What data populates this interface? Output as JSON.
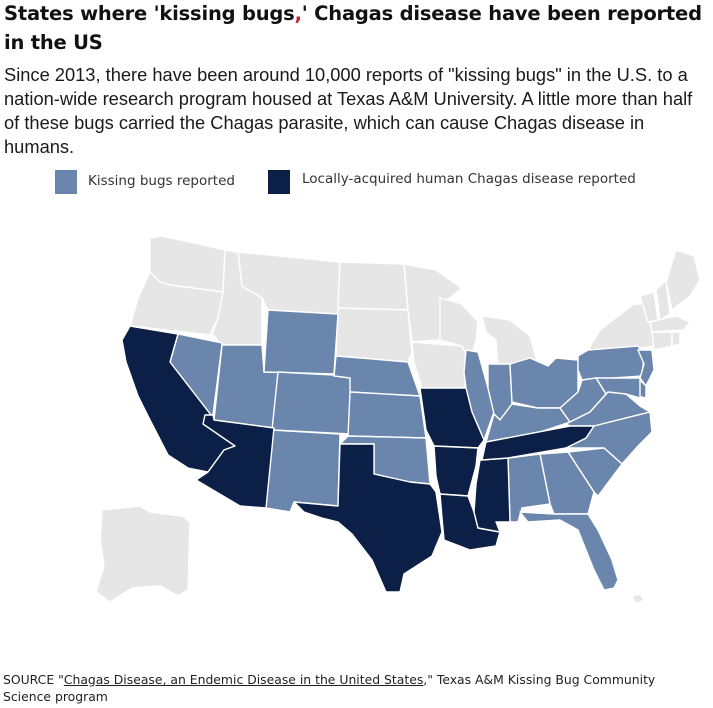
{
  "title": {
    "part1": "States where 'kissing bugs",
    "comma": ",",
    "part2": "' Chagas disease have been reported in the US"
  },
  "description": "Since 2013, there have been around 10,000 reports of \"kissing bugs\" in the U.S. to a nation-wide research program housed at Texas A&M University. A little more than half of these bugs carried the Chagas parasite, which can cause Chagas disease in humans.",
  "legend": [
    {
      "label": "Kissing bugs reported",
      "color": "#6a86ad"
    },
    {
      "label": "Locally-acquired human Chagas disease reported",
      "color": "#0c1f46"
    }
  ],
  "colors": {
    "none": "#e6e6e6",
    "bugs": "#6a86ad",
    "chagas": "#0c1f46",
    "border": "#ffffff",
    "title_comma": "#c8232c"
  },
  "map": {
    "chagas_states": [
      "California",
      "Arizona",
      "Texas",
      "Missouri",
      "Arkansas",
      "Louisiana",
      "Mississippi",
      "Tennessee"
    ],
    "bugs_states": [
      "Nevada",
      "Utah",
      "Wyoming",
      "Colorado",
      "New Mexico",
      "Nebraska",
      "Kansas",
      "Oklahoma",
      "Illinois",
      "Indiana",
      "Ohio",
      "Kentucky",
      "Pennsylvania",
      "New Jersey",
      "Delaware",
      "Maryland",
      "West Virginia",
      "Virginia",
      "North Carolina",
      "South Carolina",
      "Georgia",
      "Alabama",
      "Florida"
    ],
    "no_report_states": [
      "Washington",
      "Oregon",
      "Idaho",
      "Montana",
      "North Dakota",
      "South Dakota",
      "Minnesota",
      "Iowa",
      "Wisconsin",
      "Michigan",
      "New York",
      "Vermont",
      "New Hampshire",
      "Maine",
      "Massachusetts",
      "Connecticut",
      "Rhode Island",
      "Alaska",
      "Hawaii"
    ]
  },
  "source": {
    "prefix": "SOURCE \"",
    "link_text": "Chagas Disease, an Endemic Disease in the United States",
    "suffix": ",\" Texas A&M Kissing Bug Community Science program"
  }
}
